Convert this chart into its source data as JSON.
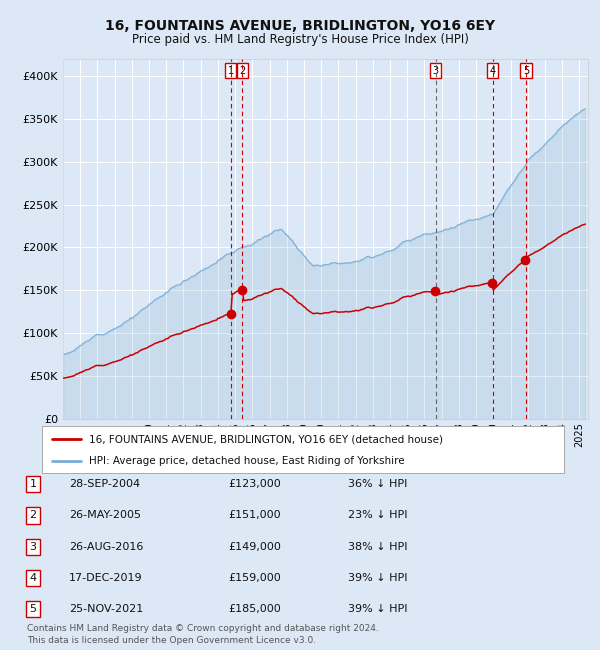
{
  "title": "16, FOUNTAINS AVENUE, BRIDLINGTON, YO16 6EY",
  "subtitle": "Price paid vs. HM Land Registry's House Price Index (HPI)",
  "bg_color": "#dce8f5",
  "plot_bg_color": "#dce8f5",
  "grid_color": "#ffffff",
  "ylim": [
    0,
    420000
  ],
  "yticks": [
    0,
    50000,
    100000,
    150000,
    200000,
    250000,
    300000,
    350000,
    400000
  ],
  "year_start": 1995,
  "year_end": 2025,
  "hpi_color": "#7aadd4",
  "price_color": "#cc0000",
  "sale_labels": [
    "1",
    "2",
    "3",
    "4",
    "5"
  ],
  "sale_years": [
    2004.75,
    2005.42,
    2016.65,
    2019.96,
    2021.9
  ],
  "sale_prices": [
    123000,
    151000,
    149000,
    159000,
    185000
  ],
  "vline_dashed_red": [
    2004.75,
    2005.42,
    2019.96,
    2021.9
  ],
  "vline_dashed_gray": [
    2016.65
  ],
  "legend_house_label": "16, FOUNTAINS AVENUE, BRIDLINGTON, YO16 6EY (detached house)",
  "legend_hpi_label": "HPI: Average price, detached house, East Riding of Yorkshire",
  "table_rows": [
    [
      "1",
      "28-SEP-2004",
      "£123,000",
      "36% ↓ HPI"
    ],
    [
      "2",
      "26-MAY-2005",
      "£151,000",
      "23% ↓ HPI"
    ],
    [
      "3",
      "26-AUG-2016",
      "£149,000",
      "38% ↓ HPI"
    ],
    [
      "4",
      "17-DEC-2019",
      "£159,000",
      "39% ↓ HPI"
    ],
    [
      "5",
      "25-NOV-2021",
      "£185,000",
      "39% ↓ HPI"
    ]
  ],
  "footer": "Contains HM Land Registry data © Crown copyright and database right 2024.\nThis data is licensed under the Open Government Licence v3.0."
}
